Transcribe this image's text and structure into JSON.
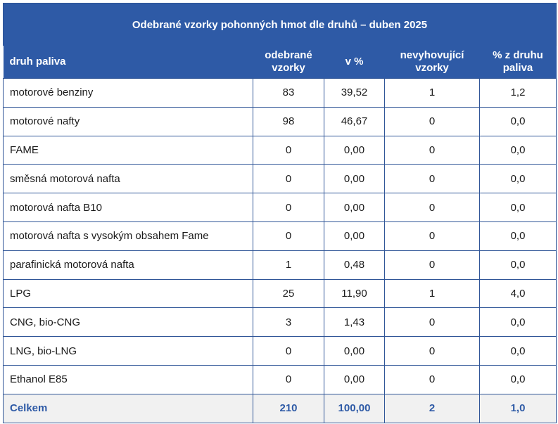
{
  "title": "Odebrané vzorky pohonných hmot dle druhů – duben 2025",
  "headers": [
    "druh paliva",
    "odebrané vzorky",
    "v %",
    "nevyhovující vzorky",
    "% z druhu paliva"
  ],
  "rows": [
    {
      "name": "motorové benziny",
      "samples": "83",
      "pct": "39,52",
      "failed": "1",
      "pct_type": "1,2"
    },
    {
      "name": "motorové nafty",
      "samples": "98",
      "pct": "46,67",
      "failed": "0",
      "pct_type": "0,0"
    },
    {
      "name": "FAME",
      "samples": "0",
      "pct": "0,00",
      "failed": "0",
      "pct_type": "0,0"
    },
    {
      "name": "směsná motorová nafta",
      "samples": "0",
      "pct": "0,00",
      "failed": "0",
      "pct_type": "0,0"
    },
    {
      "name": "motorová nafta B10",
      "samples": "0",
      "pct": "0,00",
      "failed": "0",
      "pct_type": "0,0"
    },
    {
      "name": "motorová nafta s vysokým obsahem Fame",
      "samples": "0",
      "pct": "0,00",
      "failed": "0",
      "pct_type": "0,0"
    },
    {
      "name": "parafinická motorová nafta",
      "samples": "1",
      "pct": "0,48",
      "failed": "0",
      "pct_type": "0,0"
    },
    {
      "name": "LPG",
      "samples": "25",
      "pct": "11,90",
      "failed": "1",
      "pct_type": "4,0"
    },
    {
      "name": "CNG, bio-CNG",
      "samples": "3",
      "pct": "1,43",
      "failed": "0",
      "pct_type": "0,0"
    },
    {
      "name": "LNG, bio-LNG",
      "samples": "0",
      "pct": "0,00",
      "failed": "0",
      "pct_type": "0,0"
    },
    {
      "name": "Ethanol E85",
      "samples": "0",
      "pct": "0,00",
      "failed": "0",
      "pct_type": "0,0"
    }
  ],
  "total": {
    "name": "Celkem",
    "samples": "210",
    "pct": "100,00",
    "failed": "2",
    "pct_type": "1,0"
  },
  "colors": {
    "header_bg": "#2e5aa6",
    "border": "#2f5597",
    "total_bg": "#f1f1f1",
    "total_text": "#2e5aa6"
  }
}
